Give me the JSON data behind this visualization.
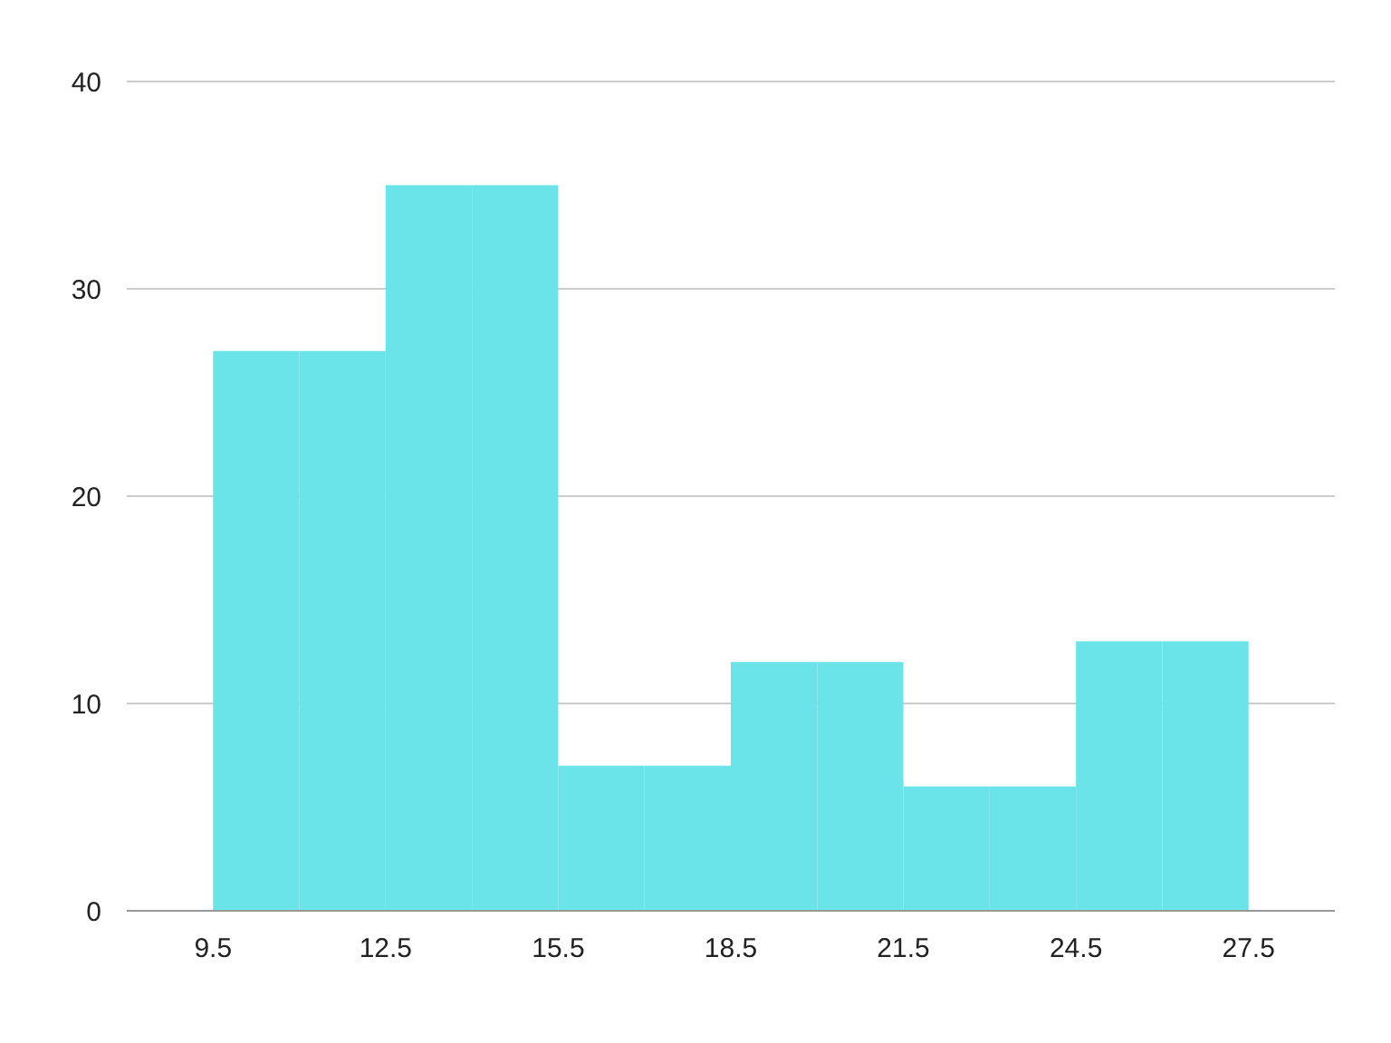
{
  "chart_data": {
    "type": "histogram",
    "bins": [
      9.5,
      11,
      12.5,
      14,
      15.5,
      17,
      18.5,
      20,
      21.5,
      23,
      24.5,
      26,
      27.5
    ],
    "values": [
      27,
      27,
      35,
      35,
      7,
      7,
      12,
      12,
      6,
      6,
      13,
      13
    ],
    "color": "#6ae4e8",
    "xlim": [
      8,
      29
    ],
    "xticks": [
      9.5,
      12.5,
      15.5,
      18.5,
      21.5,
      24.5,
      27.5
    ],
    "ylim": [
      0,
      40
    ],
    "yticks": [
      0,
      10,
      20,
      30,
      40
    ],
    "grid": "y"
  }
}
